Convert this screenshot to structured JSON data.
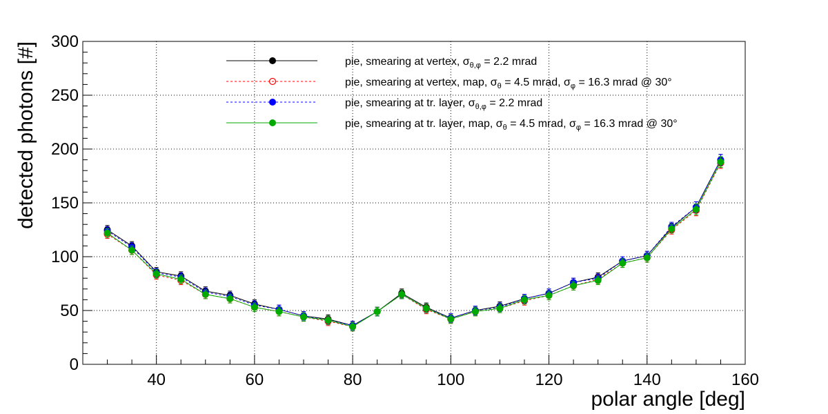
{
  "chart_data": {
    "type": "scatter",
    "xlabel": "polar angle [deg]",
    "ylabel": "detected photons [#]",
    "xlim": [
      25,
      160
    ],
    "ylim": [
      0,
      300
    ],
    "x_ticks": [
      40,
      60,
      80,
      100,
      120,
      140,
      160
    ],
    "y_ticks": [
      0,
      50,
      100,
      150,
      200,
      250,
      300
    ],
    "x_tick_labels": [
      "40",
      "60",
      "80",
      "100",
      "120",
      "140",
      "160"
    ],
    "y_tick_labels": [
      "0",
      "50",
      "100",
      "150",
      "200",
      "250",
      "300"
    ],
    "grid": true,
    "legend_placement": "top-center",
    "x": [
      30,
      35,
      40,
      45,
      50,
      55,
      60,
      65,
      70,
      75,
      80,
      85,
      90,
      95,
      100,
      105,
      110,
      115,
      120,
      125,
      130,
      135,
      140,
      145,
      150,
      155
    ],
    "series": [
      {
        "legend": {
          "pre": "pie, smearing at vertex, ",
          "sym": "σ",
          "sub": "θ,φ",
          "post": " = 2.2 mrad"
        },
        "color": "#000000",
        "line_style": "solid",
        "marker": "filled-circle",
        "values": [
          125,
          110,
          86,
          82,
          68,
          64,
          56,
          51,
          45,
          42,
          36,
          49,
          66,
          53,
          43,
          50,
          54,
          61,
          66,
          76,
          81,
          96,
          101,
          127,
          146,
          190
        ],
        "errors": [
          4,
          4,
          4,
          4,
          4,
          4,
          4,
          4,
          4,
          4,
          4,
          4,
          4,
          4,
          4,
          4,
          4,
          4,
          4,
          4,
          4,
          4,
          4,
          4,
          5,
          5
        ]
      },
      {
        "legend": {
          "pre": "pie, smearing at vertex, map, ",
          "sym": "σ",
          "sub": "θ",
          "post": " = 4.5 mrad,  ",
          "sym2": "σ",
          "sub2": "φ",
          "post2": " = 16.3 mrad @ 30°"
        },
        "color": "#ff0000",
        "line_style": "dashed",
        "marker": "open-circle",
        "values": [
          121,
          106,
          83,
          78,
          65,
          61,
          53,
          49,
          44,
          40,
          35,
          49,
          65,
          51,
          42,
          49,
          52,
          59,
          64,
          73,
          79,
          94,
          99,
          125,
          143,
          187
        ],
        "errors": [
          4,
          4,
          4,
          4,
          4,
          4,
          4,
          4,
          4,
          4,
          4,
          4,
          4,
          4,
          4,
          4,
          4,
          4,
          4,
          4,
          4,
          4,
          4,
          4,
          5,
          5
        ]
      },
      {
        "legend": {
          "pre": "pie, smearing at tr. layer, ",
          "sym": "σ",
          "sub": "θ,φ",
          "post": " = 2.2 mrad"
        },
        "color": "#0000ff",
        "line_style": "dashed",
        "marker": "filled-circle",
        "values": [
          124,
          109,
          85,
          81,
          67,
          63,
          55,
          51,
          45,
          41,
          36,
          49,
          65,
          52,
          43,
          50,
          53,
          61,
          66,
          76,
          80,
          96,
          101,
          128,
          146,
          190
        ],
        "errors": [
          4,
          4,
          4,
          4,
          4,
          4,
          4,
          4,
          4,
          4,
          4,
          4,
          4,
          4,
          4,
          4,
          4,
          4,
          4,
          4,
          4,
          4,
          4,
          4,
          5,
          5
        ]
      },
      {
        "legend": {
          "pre": "pie, smearing at tr. layer, map, ",
          "sym": "σ",
          "sub": "θ",
          "post": " = 4.5 mrad,  ",
          "sym2": "σ",
          "sub2": "φ",
          "post2": " = 16.3 mrad @ 30°"
        },
        "color": "#00aa00",
        "line_style": "solid",
        "marker": "filled-circle",
        "values": [
          122,
          106,
          84,
          79,
          65,
          61,
          53,
          49,
          44,
          41,
          35,
          49,
          65,
          52,
          42,
          49,
          52,
          60,
          64,
          73,
          78,
          94,
          99,
          126,
          144,
          188
        ],
        "errors": [
          4,
          4,
          4,
          4,
          4,
          4,
          4,
          4,
          4,
          4,
          4,
          4,
          4,
          4,
          4,
          4,
          4,
          4,
          4,
          4,
          4,
          4,
          4,
          4,
          5,
          5
        ]
      }
    ]
  }
}
